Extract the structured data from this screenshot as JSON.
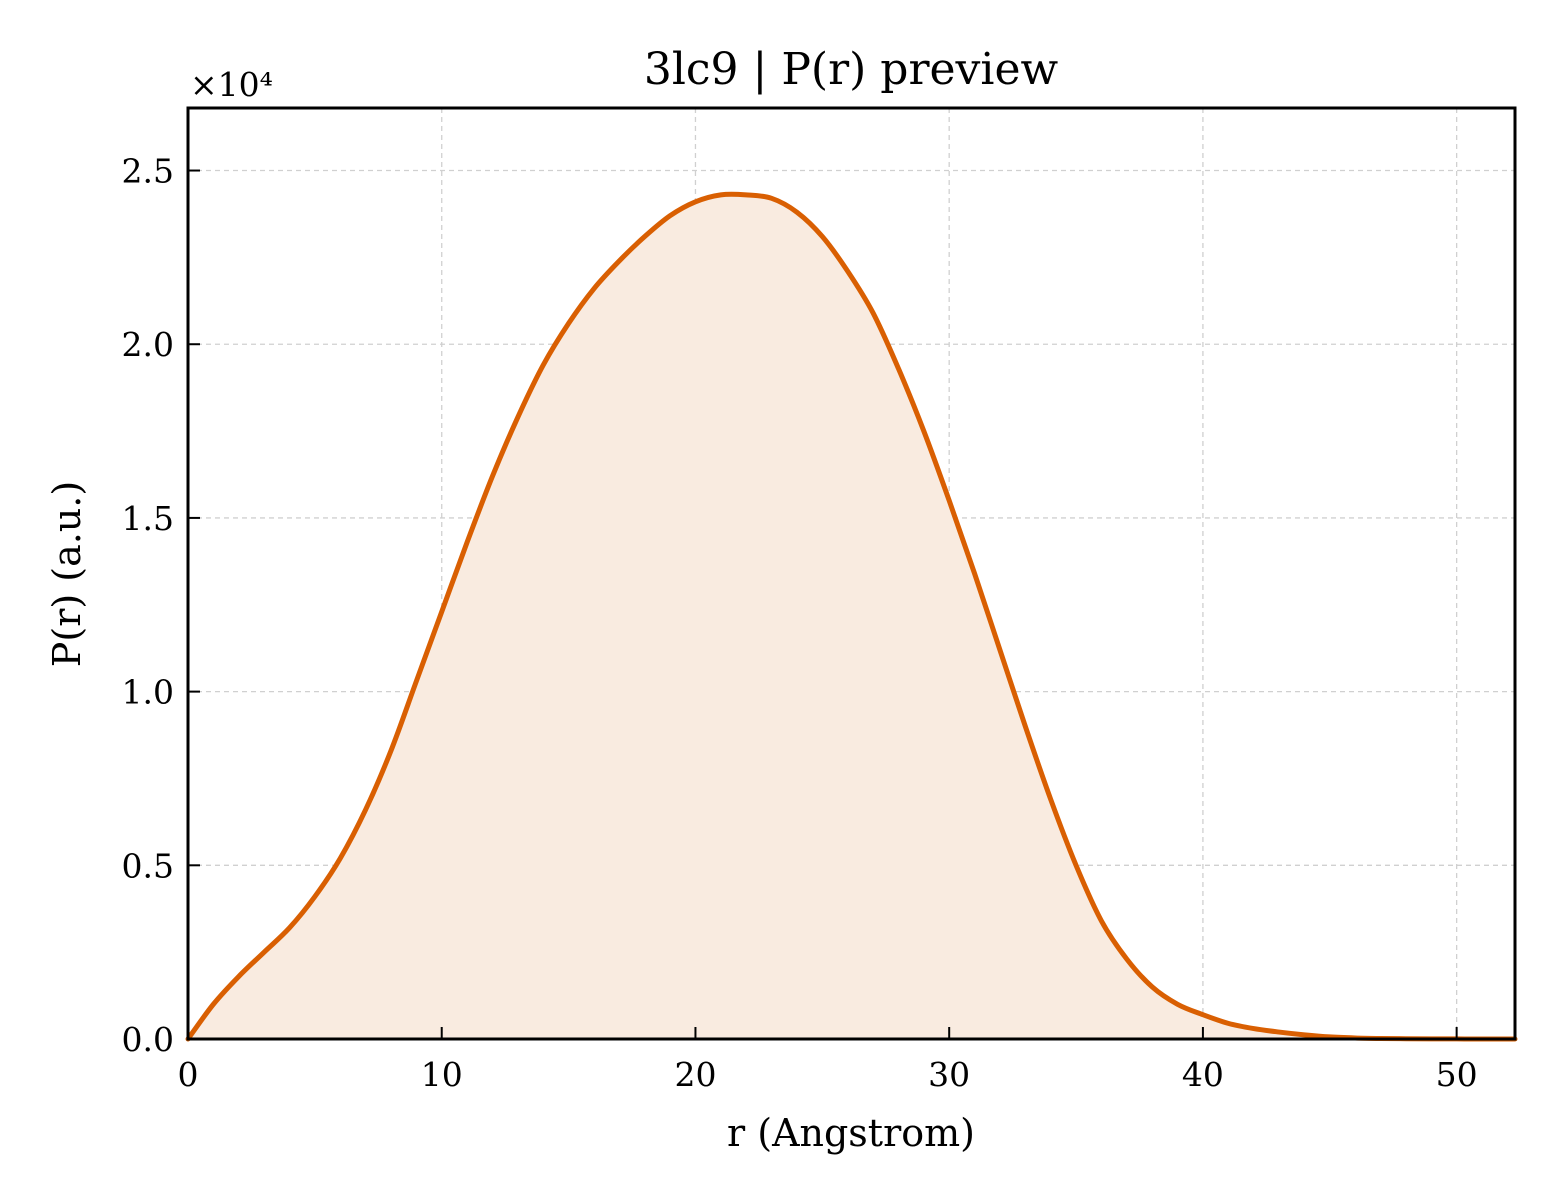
{
  "chart_data": {
    "type": "area",
    "title": "3lc9 | P(r) preview",
    "xlabel": "r (Angstrom)",
    "ylabel": "P(r) (a.u.)",
    "y_offset_label": "×10⁴",
    "xlim": [
      0,
      52.3
    ],
    "ylim": [
      0,
      2.68
    ],
    "x_ticks": [
      0,
      10,
      20,
      30,
      40,
      50
    ],
    "x_tick_labels": [
      "0",
      "10",
      "20",
      "30",
      "40",
      "50"
    ],
    "y_ticks": [
      0.0,
      0.5,
      1.0,
      1.5,
      2.0,
      2.5
    ],
    "y_tick_labels": [
      "0.0",
      "0.5",
      "1.0",
      "1.5",
      "2.0",
      "2.5"
    ],
    "grid": true,
    "line_color": "#d95f02",
    "fill_color": "#f9ebe0",
    "series": [
      {
        "x": [
          0,
          1,
          2,
          3,
          4,
          5,
          6,
          7,
          8,
          9,
          10,
          11,
          12,
          13,
          14,
          15,
          16,
          17,
          18,
          19,
          20,
          21,
          22,
          23,
          24,
          25,
          26,
          27,
          28,
          29,
          30,
          31,
          32,
          33,
          34,
          35,
          36,
          37,
          38,
          39,
          40,
          41,
          42,
          43,
          44,
          45,
          46,
          47,
          48,
          49,
          50,
          51,
          52.3
        ],
        "y": [
          0.0,
          0.1,
          0.18,
          0.25,
          0.32,
          0.41,
          0.52,
          0.66,
          0.83,
          1.03,
          1.23,
          1.43,
          1.62,
          1.79,
          1.94,
          2.06,
          2.16,
          2.24,
          2.31,
          2.37,
          2.41,
          2.43,
          2.43,
          2.42,
          2.38,
          2.31,
          2.21,
          2.09,
          1.93,
          1.75,
          1.55,
          1.34,
          1.12,
          0.9,
          0.69,
          0.5,
          0.34,
          0.23,
          0.15,
          0.1,
          0.07,
          0.045,
          0.03,
          0.02,
          0.012,
          0.006,
          0.003,
          0.0015,
          0.0008,
          0.0004,
          0.0002,
          0.0001,
          0.0
        ]
      }
    ]
  }
}
